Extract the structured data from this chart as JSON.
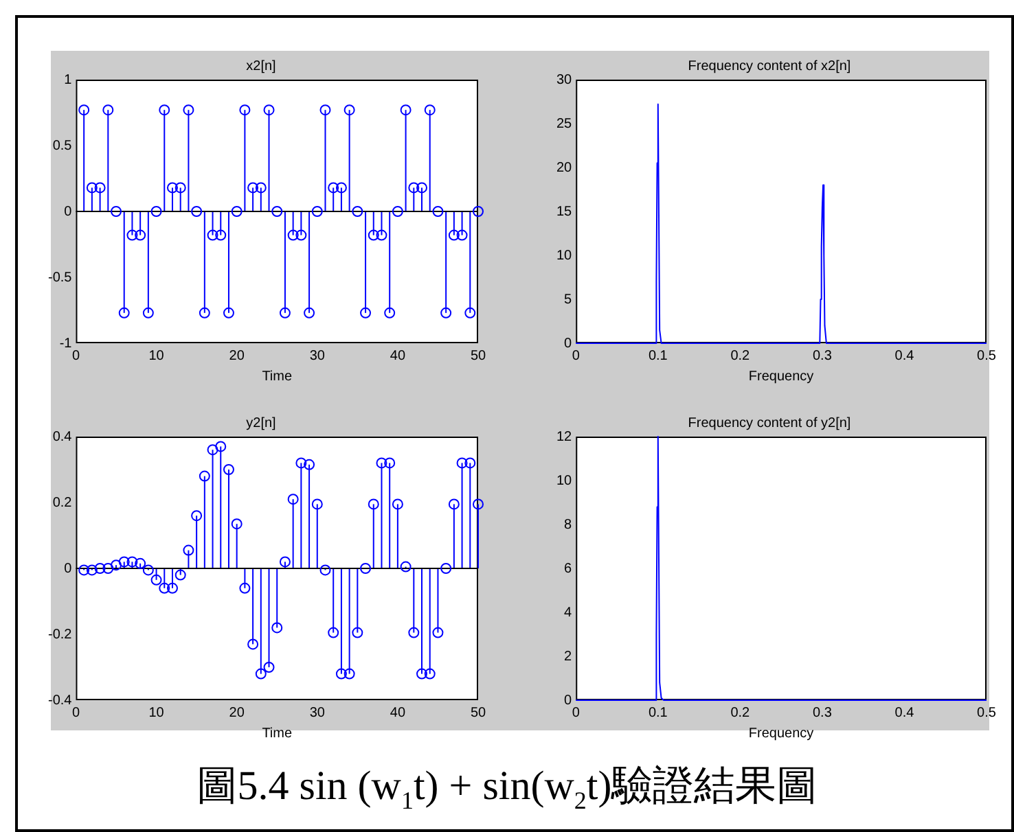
{
  "chart_data": [
    {
      "type": "lollipop",
      "title": "x2[n]",
      "xlabel": "Time",
      "x": [
        1,
        2,
        3,
        4,
        5,
        6,
        7,
        8,
        9,
        10,
        11,
        12,
        13,
        14,
        15,
        16,
        17,
        18,
        19,
        20,
        21,
        22,
        23,
        24,
        25,
        26,
        27,
        28,
        29,
        30,
        31,
        32,
        33,
        34,
        35,
        36,
        37,
        38,
        39,
        40,
        41,
        42,
        43,
        44,
        45,
        46,
        47,
        48,
        49,
        50
      ],
      "values": [
        0.77,
        0.18,
        0.18,
        0.77,
        0,
        -0.77,
        -0.18,
        -0.18,
        -0.77,
        0,
        0.77,
        0.18,
        0.18,
        0.77,
        0,
        -0.77,
        -0.18,
        -0.18,
        -0.77,
        0,
        0.77,
        0.18,
        0.18,
        0.77,
        0,
        -0.77,
        -0.18,
        -0.18,
        -0.77,
        0,
        0.77,
        0.18,
        0.18,
        0.77,
        0,
        -0.77,
        -0.18,
        -0.18,
        -0.77,
        0,
        0.77,
        0.18,
        0.18,
        0.77,
        0,
        -0.77,
        -0.18,
        -0.18,
        -0.77,
        0
      ],
      "color": "#0000ff",
      "marker": "circle",
      "xlim": [
        0,
        50
      ],
      "xticks": [
        0,
        10,
        20,
        30,
        40,
        50
      ],
      "ylim": [
        -1,
        1
      ],
      "yticks": [
        -1,
        -0.5,
        0,
        0.5,
        1
      ]
    },
    {
      "type": "line",
      "title": "Frequency content of x2[n]",
      "xlabel": "Frequency",
      "x": [
        0,
        0.097,
        0.098,
        0.099,
        0.1,
        0.101,
        0.102,
        0.104,
        0.297,
        0.298,
        0.299,
        0.3,
        0.301,
        0.302,
        0.303,
        0.305,
        0.5
      ],
      "values": [
        0,
        0,
        7,
        20.5,
        27.2,
        14.5,
        1.5,
        0,
        0,
        5,
        11,
        15.5,
        18,
        10,
        2,
        0,
        0
      ],
      "color": "#0000ff",
      "xlim": [
        0,
        0.5
      ],
      "xticks": [
        0,
        0.1,
        0.2,
        0.3,
        0.4,
        0.5
      ],
      "ylim": [
        0,
        30
      ],
      "yticks": [
        0,
        5,
        10,
        15,
        20,
        25,
        30
      ]
    },
    {
      "type": "lollipop",
      "title": "y2[n]",
      "xlabel": "Time",
      "x": [
        1,
        2,
        3,
        4,
        5,
        6,
        7,
        8,
        9,
        10,
        11,
        12,
        13,
        14,
        15,
        16,
        17,
        18,
        19,
        20,
        21,
        22,
        23,
        24,
        25,
        26,
        27,
        28,
        29,
        30,
        31,
        32,
        33,
        34,
        35,
        36,
        37,
        38,
        39,
        40,
        41,
        42,
        43,
        44,
        45,
        46,
        47,
        48,
        49,
        50
      ],
      "values": [
        -0.005,
        -0.005,
        0,
        0,
        0.01,
        0.02,
        0.02,
        0.015,
        -0.005,
        -0.035,
        -0.06,
        -0.06,
        -0.02,
        0.055,
        0.16,
        0.28,
        0.36,
        0.37,
        0.3,
        0.135,
        -0.06,
        -0.23,
        -0.32,
        -0.3,
        -0.18,
        0.02,
        0.21,
        0.32,
        0.315,
        0.195,
        -0.005,
        -0.195,
        -0.32,
        -0.32,
        -0.195,
        0,
        0.195,
        0.32,
        0.32,
        0.195,
        0.005,
        -0.195,
        -0.32,
        -0.32,
        -0.195,
        0,
        0.195,
        0.32,
        0.32,
        0.195
      ],
      "color": "#0000ff",
      "marker": "circle",
      "xlim": [
        0,
        50
      ],
      "xticks": [
        0,
        10,
        20,
        30,
        40,
        50
      ],
      "ylim": [
        -0.4,
        0.4
      ],
      "yticks": [
        -0.4,
        -0.2,
        0,
        0.2,
        0.4
      ]
    },
    {
      "type": "line",
      "title": "Frequency content of y2[n]",
      "xlabel": "Frequency",
      "x": [
        0,
        0.097,
        0.098,
        0.099,
        0.1,
        0.101,
        0.102,
        0.104,
        0.107,
        0.5
      ],
      "values": [
        0,
        0,
        3,
        8.8,
        12,
        6.4,
        0.8,
        0.1,
        0,
        0
      ],
      "color": "#0000ff",
      "xlim": [
        0,
        0.5
      ],
      "xticks": [
        0,
        0.1,
        0.2,
        0.3,
        0.4,
        0.5
      ],
      "ylim": [
        0,
        12
      ],
      "yticks": [
        0,
        2,
        4,
        6,
        8,
        10,
        12
      ]
    },
    {
      "type": "other",
      "title": "圖5.4  sin (w$_{1}$t) + sin(w$_{2}$t)驗證結果圖"
    }
  ]
}
